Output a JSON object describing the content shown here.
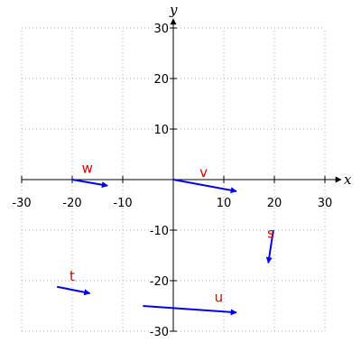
{
  "colors": {
    "vector": "#0000ee",
    "label": "#dd0000",
    "axis": "#000000",
    "grid": "#b0b0b0"
  },
  "chart_data": {
    "type": "vector_field",
    "title": "",
    "xlabel": "x",
    "ylabel": "y",
    "xlim": [
      -30,
      30
    ],
    "ylim": [
      -30,
      30
    ],
    "xticks": [
      -30,
      -20,
      -10,
      10,
      20,
      30
    ],
    "yticks": [
      -30,
      -20,
      -10,
      10,
      20,
      30
    ],
    "grid": true,
    "vectors": [
      {
        "name": "w",
        "from": [
          -20,
          0
        ],
        "to": [
          -13,
          -1.2
        ],
        "label_at": [
          -17,
          1.3
        ]
      },
      {
        "name": "v",
        "from": [
          0,
          0
        ],
        "to": [
          12.5,
          -2.3
        ],
        "label_at": [
          6,
          0.5
        ]
      },
      {
        "name": "s",
        "from": [
          19.8,
          -10
        ],
        "to": [
          18.8,
          -16.5
        ],
        "label_at": [
          19.3,
          -11.5
        ]
      },
      {
        "name": "t",
        "from": [
          -23,
          -21.2
        ],
        "to": [
          -16.5,
          -22.5
        ],
        "label_at": [
          -20,
          -20
        ]
      },
      {
        "name": "u",
        "from": [
          -6,
          -25
        ],
        "to": [
          12.5,
          -26.3
        ],
        "label_at": [
          9,
          -24.2
        ]
      }
    ]
  }
}
